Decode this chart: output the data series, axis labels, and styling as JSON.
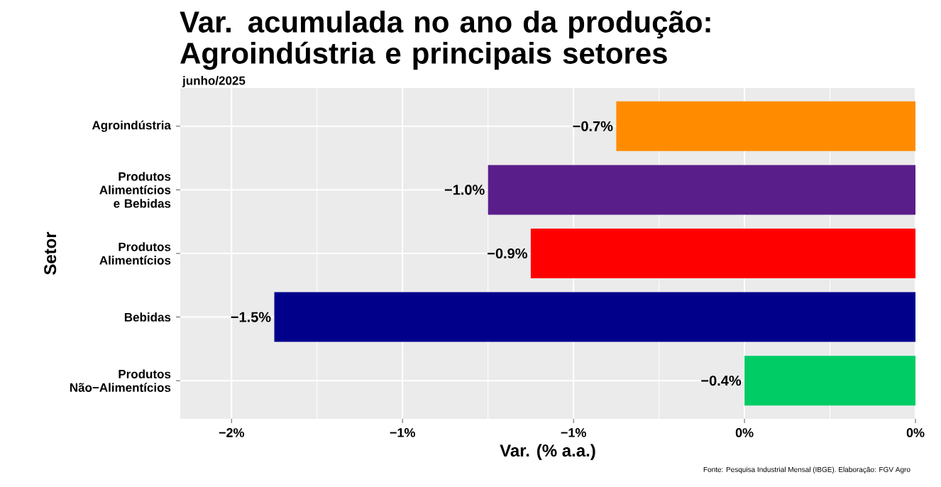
{
  "chart_data": {
    "type": "bar",
    "orientation": "horizontal",
    "title": "Var. acumulada no ano da produção: Agroindústria e principais setores",
    "subtitle": "junho/2025",
    "xlabel": "Var. (% a.a.)",
    "ylabel": "Setor",
    "categories": [
      "Agroindústria",
      "Produtos Alimentícios e Bebidas",
      "Produtos Alimentícios",
      "Bebidas",
      "Produtos Não−Alimentícios"
    ],
    "values": [
      -0.7,
      -1.0,
      -0.9,
      -1.5,
      -0.4
    ],
    "value_labels": [
      "−0.7%",
      "−1.0%",
      "−0.9%",
      "−1.5%",
      "−0.4%"
    ],
    "colors": [
      "#ff8c00",
      "#5a1e8a",
      "#ff0000",
      "#00008b",
      "#00cc66"
    ],
    "xlim": [
      -1.72,
      0
    ],
    "xticks": [
      {
        "value": -1.6,
        "label": "−2%"
      },
      {
        "value": -1.2,
        "label": "−1%"
      },
      {
        "value": -0.8,
        "label": "−1%"
      },
      {
        "value": -0.4,
        "label": "0%"
      },
      {
        "value": 0,
        "label": "0%"
      }
    ],
    "grid": true,
    "annotations": [
      "Fonte: Pesquisa Industrial Mensal (IBGE). Elaboração: FGV Agro"
    ]
  }
}
